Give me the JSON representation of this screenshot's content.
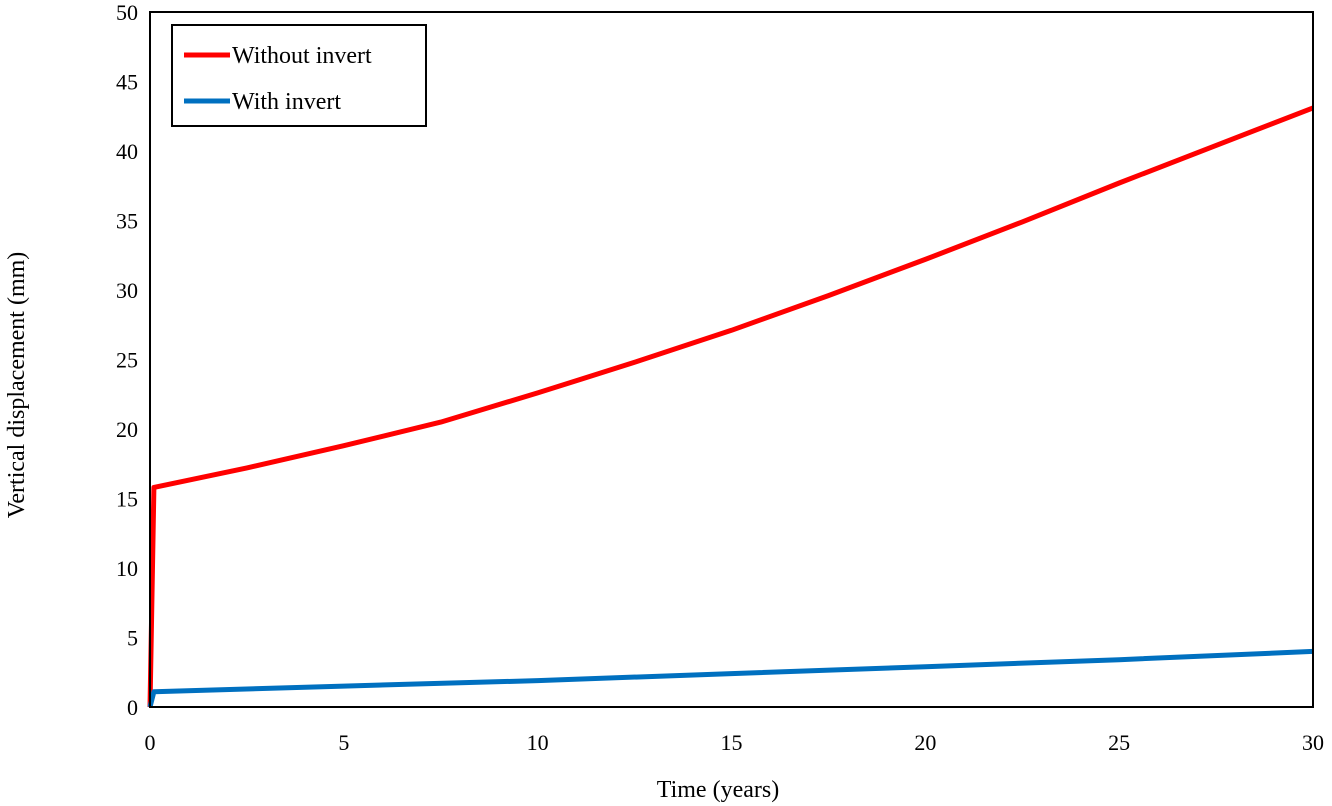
{
  "chart_data": {
    "type": "line",
    "title": "",
    "xlabel": "Time (years)",
    "ylabel": "Vertical displacement (mm)",
    "xlim": [
      0,
      30
    ],
    "ylim": [
      0,
      50
    ],
    "x_ticks": [
      0,
      5,
      10,
      15,
      20,
      25,
      30
    ],
    "y_ticks": [
      0,
      5,
      10,
      15,
      20,
      25,
      30,
      35,
      40,
      45,
      50
    ],
    "grid": false,
    "legend_position": "top-left",
    "series": [
      {
        "name": "Without invert",
        "color": "#ff0000",
        "x": [
          0,
          0.1,
          2.5,
          5,
          7.5,
          10,
          12.5,
          15,
          17.5,
          20,
          22.5,
          25,
          27.5,
          30
        ],
        "y": [
          0,
          15.8,
          17.2,
          18.8,
          20.5,
          22.6,
          24.8,
          27.1,
          29.6,
          32.2,
          34.9,
          37.7,
          40.4,
          43.1
        ]
      },
      {
        "name": "With invert",
        "color": "#0070c0",
        "x": [
          0,
          0.1,
          5,
          10,
          15,
          20,
          25,
          30
        ],
        "y": [
          0,
          1.1,
          1.5,
          1.9,
          2.4,
          2.9,
          3.4,
          4.0
        ]
      }
    ]
  }
}
